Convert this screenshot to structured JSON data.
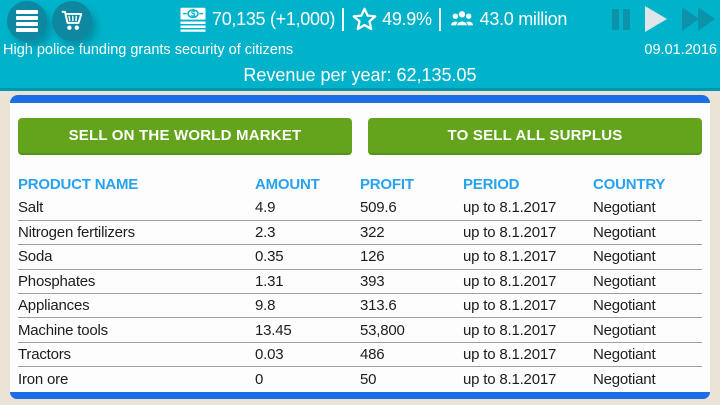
{
  "topbar": {
    "money": "70,135 (+1,000)",
    "rating": "49.9%",
    "population": "43.0 million",
    "icons": {
      "menu": "hamburger-menu",
      "cart": "shopping-cart",
      "money": "banknotes-stack",
      "rating": "star-outline",
      "population": "people-group",
      "pause": "pause-bars",
      "play": "play-triangle",
      "fast_forward": "double-triangle"
    }
  },
  "news": {
    "headline": "High police funding grants security of citizens",
    "date": "09.01.2016"
  },
  "revenue": {
    "label": "Revenue per year: 62,135.05"
  },
  "actions": {
    "sell_world_market": "SELL ON THE WORLD MARKET",
    "sell_all_surplus": "TO SELL ALL SURPLUS"
  },
  "table": {
    "headers": [
      "PRODUCT NAME",
      "AMOUNT",
      "PROFIT",
      "PERIOD",
      "COUNTRY"
    ],
    "rows": [
      {
        "product": "Salt",
        "amount": "4.9",
        "profit": "509.6",
        "period": "up to 8.1.2017",
        "country": "Negotiant"
      },
      {
        "product": "Nitrogen fertilizers",
        "amount": "2.3",
        "profit": "322",
        "period": "up to 8.1.2017",
        "country": "Negotiant"
      },
      {
        "product": "Soda",
        "amount": "0.35",
        "profit": "126",
        "period": "up to 8.1.2017",
        "country": "Negotiant"
      },
      {
        "product": "Phosphates",
        "amount": "1.31",
        "profit": "393",
        "period": "up to 8.1.2017",
        "country": "Negotiant"
      },
      {
        "product": "Appliances",
        "amount": "9.8",
        "profit": "313.6",
        "period": "up to 8.1.2017",
        "country": "Negotiant"
      },
      {
        "product": "Machine tools",
        "amount": "13.45",
        "profit": "53,800",
        "period": "up to 8.1.2017",
        "country": "Negotiant"
      },
      {
        "product": "Tractors",
        "amount": "0.03",
        "profit": "486",
        "period": "up to 8.1.2017",
        "country": "Negotiant"
      },
      {
        "product": "Iron ore",
        "amount": "0",
        "profit": "50",
        "period": "up to 8.1.2017",
        "country": "Negotiant"
      }
    ]
  },
  "colors": {
    "topbar_cyan": "#00b3cb",
    "circle_button_teal": "#0e87a0",
    "header_edge_teal": "#0095ae",
    "background_cream": "#ebe3d6",
    "card_blue_bar": "#1b6ee6",
    "button_green": "#64a41d",
    "table_header_blue": "#27a2ee",
    "playback_inactive_teal": "#0c93aa",
    "playback_active_light": "#dee6e9"
  }
}
